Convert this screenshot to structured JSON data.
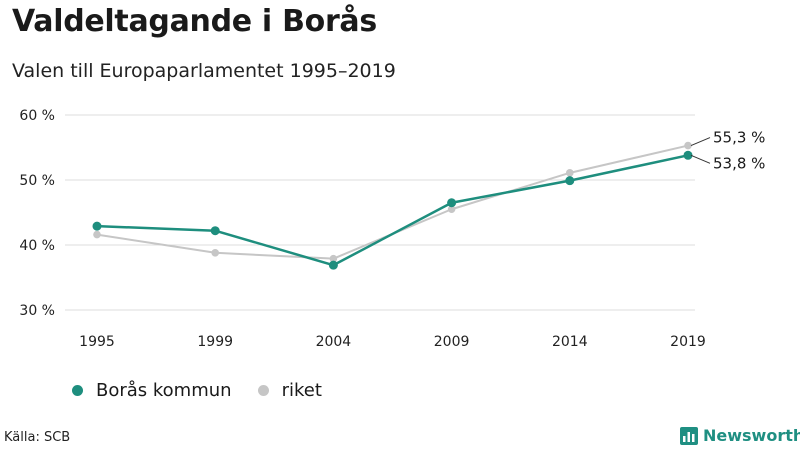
{
  "header": {
    "title": "Valdeltagande i Borås",
    "subtitle": "Valen till Europaparlamentet 1995–2019"
  },
  "chart_data": {
    "type": "line",
    "title": "Valdeltagande i Borås",
    "subtitle": "Valen till Europaparlamentet 1995–2019",
    "categories": [
      "1995",
      "1999",
      "2004",
      "2009",
      "2014",
      "2019"
    ],
    "y_ticks": [
      30,
      40,
      50,
      60
    ],
    "y_tick_labels": [
      "30 %",
      "40 %",
      "50 %",
      "60 %"
    ],
    "ylim": [
      30,
      60
    ],
    "series": [
      {
        "name": "riket",
        "color": "#c6c6c6",
        "values": [
          41.6,
          38.8,
          37.9,
          45.5,
          51.1,
          55.3
        ],
        "end_label": "55,3 %"
      },
      {
        "name": "Borås kommun",
        "color": "#1e8e7e",
        "values": [
          42.9,
          42.2,
          36.9,
          46.5,
          49.9,
          53.8
        ],
        "end_label": "53,8 %"
      }
    ],
    "xlabel": "",
    "ylabel": "",
    "grid": true,
    "legend": "bottom-left"
  },
  "legend": {
    "items": [
      {
        "label": "Borås kommun",
        "color": "#1e8e7e"
      },
      {
        "label": "riket",
        "color": "#c6c6c6"
      }
    ]
  },
  "footer": {
    "source": "Källa: SCB",
    "brand": "Newsworthy",
    "brand_color": "#1f8f82",
    "logo_icon": "bar-chart-icon"
  }
}
